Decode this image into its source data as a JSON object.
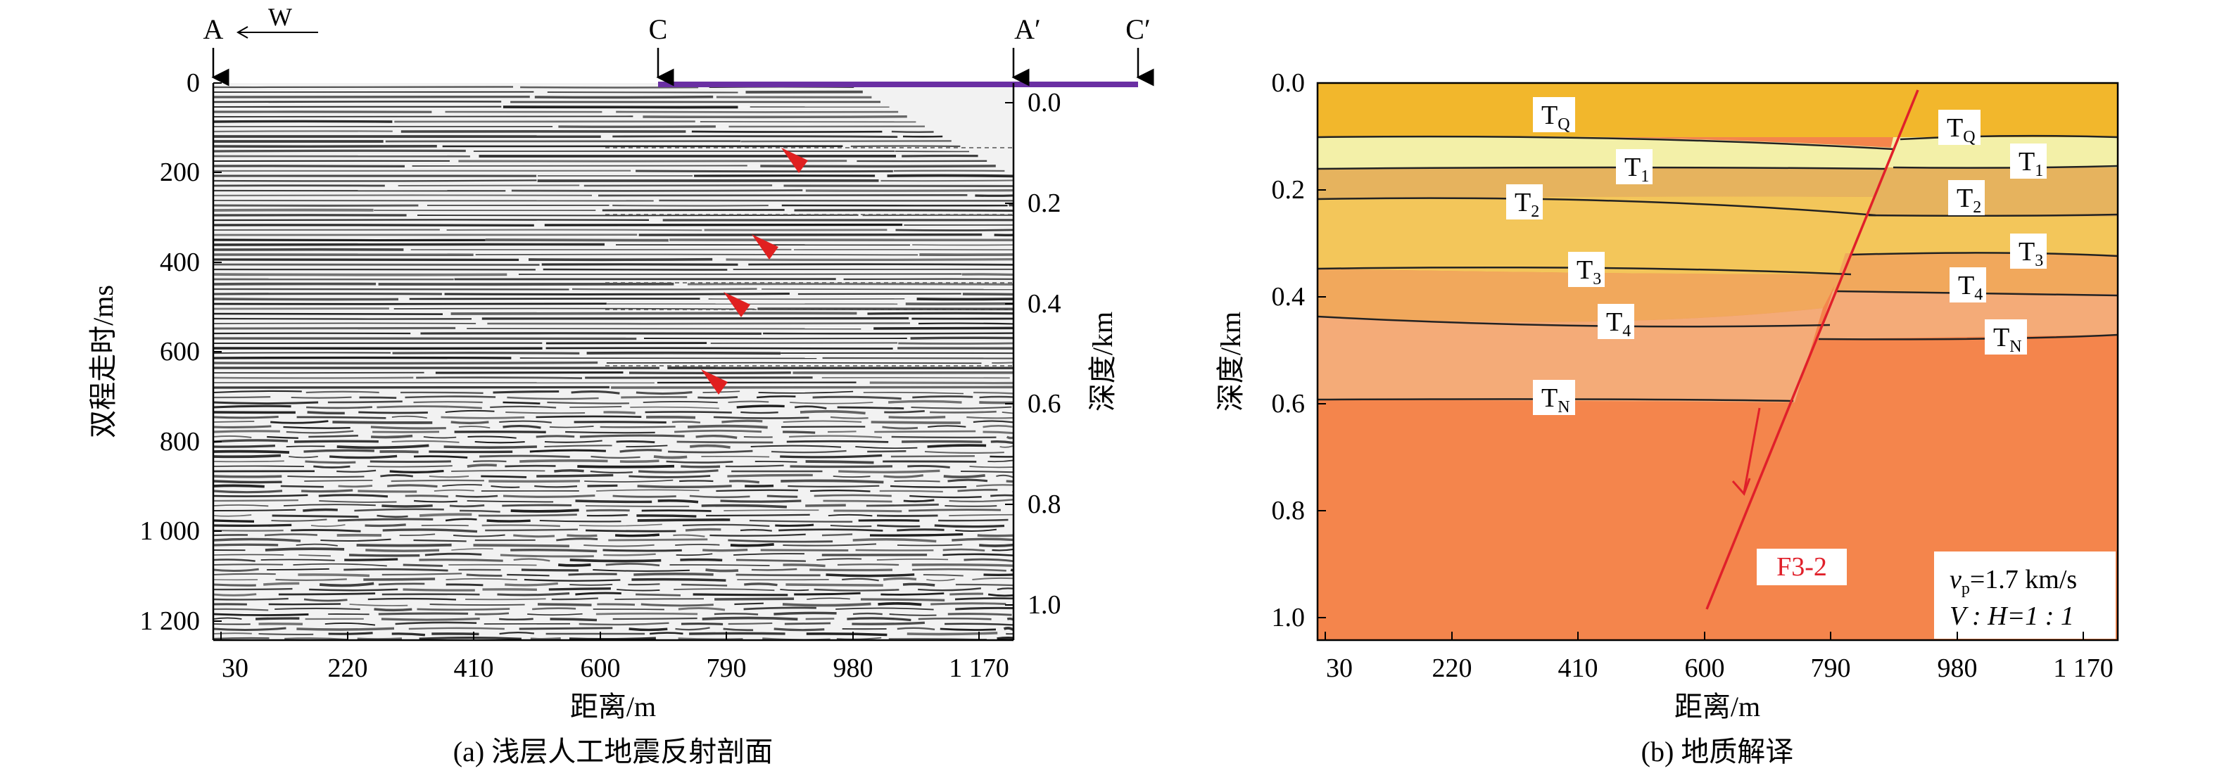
{
  "panel_a": {
    "caption": "(a) 浅层人工地震反射剖面",
    "xlabel": "距离/m",
    "ylabel_left": "双程走时/ms",
    "ylabel_right": "深度/km",
    "x_ticks": [
      "30",
      "220",
      "410",
      "600",
      "790",
      "980",
      "1 170"
    ],
    "y_ticks_left": [
      "0",
      "200",
      "400",
      "600",
      "800",
      "1 000",
      "1 200"
    ],
    "y_ticks_right": [
      "0.0",
      "0.2",
      "0.4",
      "0.6",
      "0.8",
      "1.0"
    ],
    "top_markers": [
      "A",
      "C",
      "A′",
      "C′"
    ],
    "direction_label": "W"
  },
  "panel_b": {
    "caption": "(b) 地质解译",
    "xlabel": "距离/m",
    "ylabel": "深度/km",
    "x_ticks": [
      "30",
      "220",
      "410",
      "600",
      "790",
      "980",
      "1 170"
    ],
    "y_ticks": [
      "0.0",
      "0.2",
      "0.4",
      "0.6",
      "0.8",
      "1.0"
    ],
    "fault_label": "F3-2",
    "velocity_label": "v",
    "velocity_sub": "p",
    "velocity_value": "=1.7 km/s",
    "scale_label": "V : H=1 : 1",
    "layer_colors": [
      "#f2b72c",
      "#f3f0a8",
      "#e6b35e",
      "#f3c65a",
      "#f1a85c",
      "#f4ab78",
      "#f4854c"
    ],
    "horizon_labels_left": [
      {
        "main": "T",
        "sub": "Q"
      },
      {
        "main": "T",
        "sub": "1"
      },
      {
        "main": "T",
        "sub": "2"
      },
      {
        "main": "T",
        "sub": "3"
      },
      {
        "main": "T",
        "sub": "4"
      },
      {
        "main": "T",
        "sub": "N"
      }
    ],
    "horizon_labels_right": [
      {
        "main": "T",
        "sub": "Q"
      },
      {
        "main": "T",
        "sub": "1"
      },
      {
        "main": "T",
        "sub": "2"
      },
      {
        "main": "T",
        "sub": "3"
      },
      {
        "main": "T",
        "sub": "4"
      },
      {
        "main": "T",
        "sub": "N"
      }
    ]
  }
}
